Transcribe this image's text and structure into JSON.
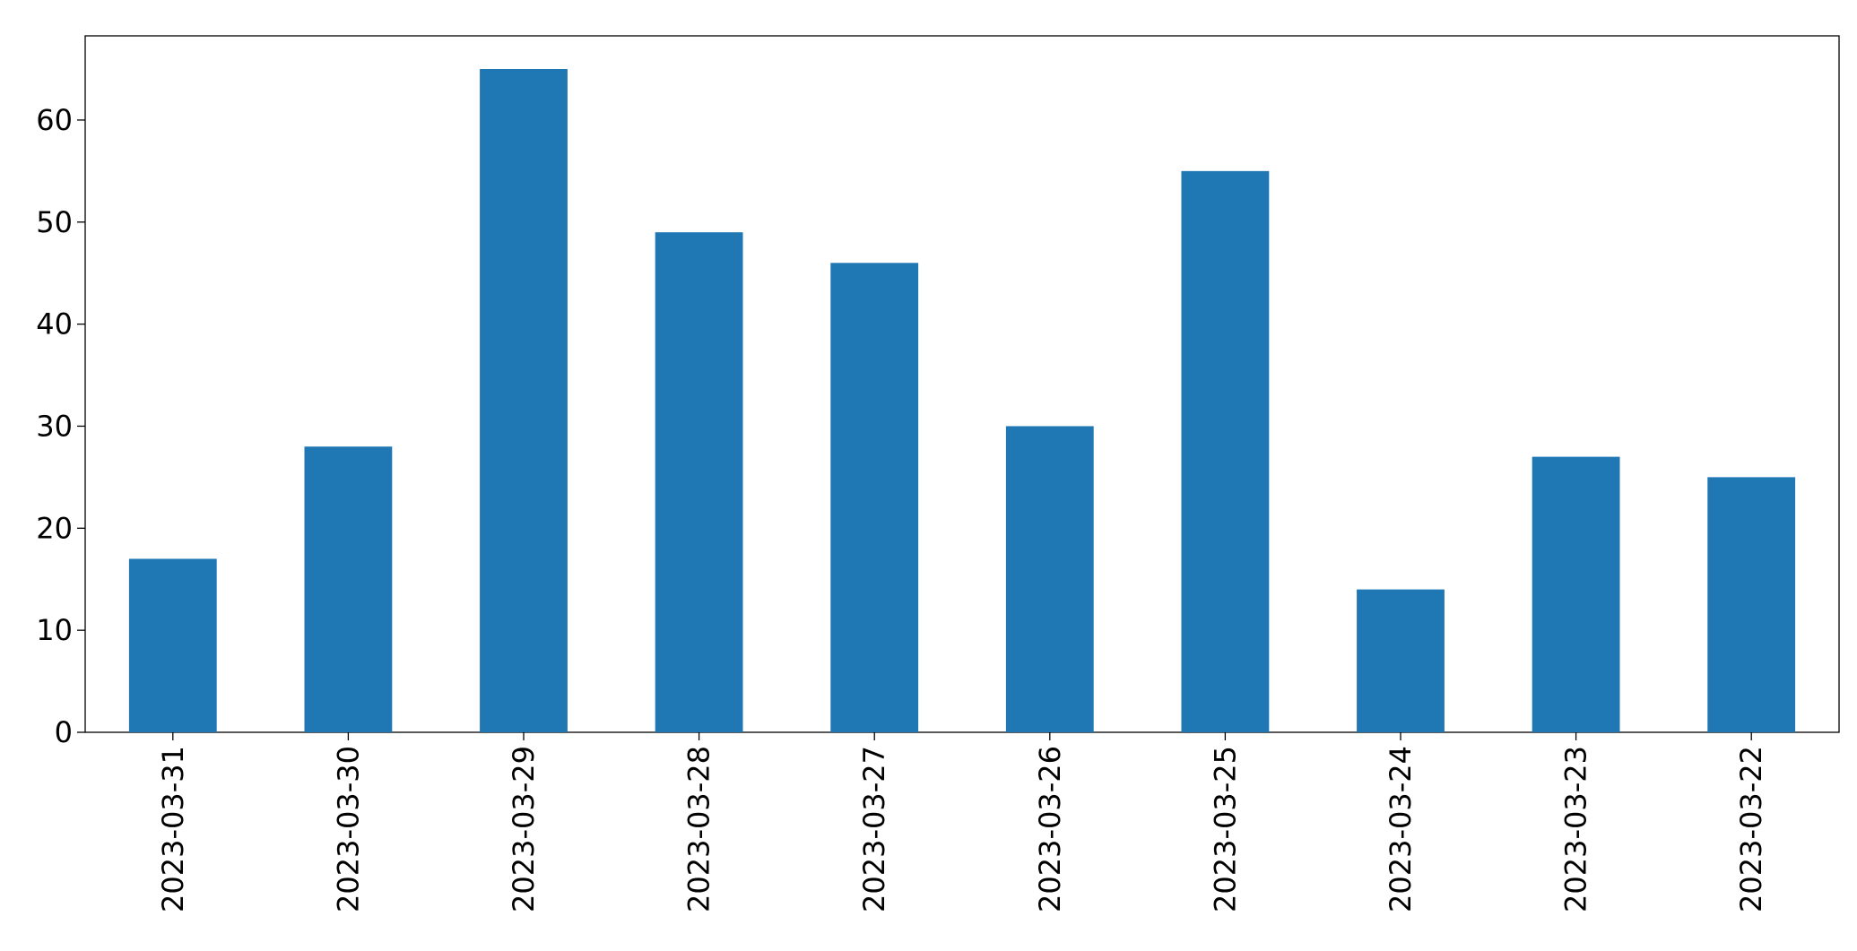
{
  "chart_data": {
    "type": "bar",
    "categories": [
      "2023-03-31",
      "2023-03-30",
      "2023-03-29",
      "2023-03-28",
      "2023-03-27",
      "2023-03-26",
      "2023-03-25",
      "2023-03-24",
      "2023-03-23",
      "2023-03-22"
    ],
    "values": [
      17,
      28,
      65,
      49,
      46,
      30,
      55,
      14,
      27,
      25
    ],
    "color": "#1f77b4",
    "ylim": [
      0,
      68.25
    ],
    "yticks": [
      0,
      10,
      20,
      30,
      40,
      50,
      60
    ],
    "grid": false
  }
}
